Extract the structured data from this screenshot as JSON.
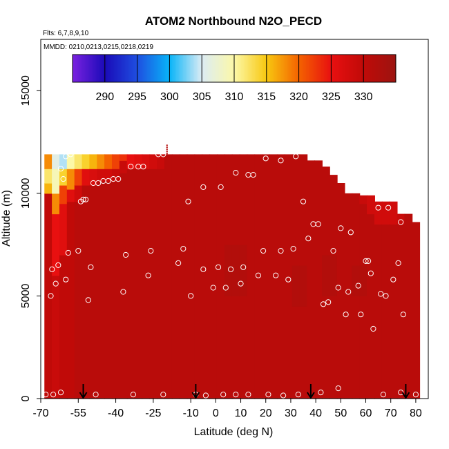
{
  "chart_data": {
    "type": "heatmap",
    "title": "ATOM2 Northbound N2O_PECD",
    "flights_label": "Flts: 6,7,8,9,10",
    "dates_label": "MMDD: 0210,0213,0215,0218,0219",
    "xlabel": "Latitude (deg N)",
    "ylabel": "Altitude (m)",
    "xlim": [
      -70,
      85
    ],
    "ylim": [
      0,
      17500
    ],
    "x_ticks": [
      -70,
      -55,
      -40,
      -25,
      -10,
      0,
      10,
      20,
      30,
      40,
      50,
      60,
      70,
      80
    ],
    "y_ticks": [
      0,
      5000,
      10000,
      15000
    ],
    "colorbar": {
      "ticks": [
        290,
        295,
        300,
        305,
        310,
        315,
        320,
        325,
        330
      ],
      "range": [
        285,
        335
      ],
      "colors": [
        "#7a22e0",
        "#1a0ab8",
        "#1e4ee0",
        "#08b4f8",
        "#dcecf4",
        "#fcf8a8",
        "#f8c810",
        "#f46200",
        "#e81010",
        "#c00a08",
        "#9c1410"
      ]
    },
    "profile_columns": [
      {
        "lat": -67,
        "top": 11900,
        "layers": [
          [
            0,
            10000,
            330
          ],
          [
            10000,
            10500,
            316
          ],
          [
            10500,
            11200,
            312
          ],
          [
            11200,
            11900,
            318
          ]
        ]
      },
      {
        "lat": -64,
        "top": 11900,
        "layers": [
          [
            0,
            6000,
            329
          ],
          [
            6000,
            9000,
            325
          ],
          [
            9000,
            10000,
            318
          ],
          [
            10000,
            11200,
            309
          ],
          [
            11200,
            11900,
            306
          ]
        ]
      },
      {
        "lat": -61,
        "top": 11900,
        "layers": [
          [
            0,
            7000,
            330
          ],
          [
            7000,
            9500,
            326
          ],
          [
            9500,
            10400,
            322
          ],
          [
            10400,
            11200,
            314
          ],
          [
            11200,
            11900,
            304
          ]
        ]
      },
      {
        "lat": -58,
        "top": 11900,
        "layers": [
          [
            0,
            9600,
            330
          ],
          [
            9600,
            10200,
            326
          ],
          [
            10200,
            11200,
            318
          ],
          [
            11200,
            11900,
            310
          ]
        ]
      },
      {
        "lat": -55,
        "top": 11900,
        "layers": [
          [
            0,
            9600,
            331
          ],
          [
            9600,
            10400,
            328
          ],
          [
            10400,
            11200,
            322
          ],
          [
            11200,
            11900,
            312
          ]
        ]
      },
      {
        "lat": -52,
        "top": 11900,
        "layers": [
          [
            0,
            10400,
            331
          ],
          [
            10400,
            11200,
            326
          ],
          [
            11200,
            11900,
            314
          ]
        ]
      },
      {
        "lat": -49,
        "top": 11900,
        "layers": [
          [
            0,
            10400,
            331
          ],
          [
            10400,
            11200,
            327
          ],
          [
            11200,
            11900,
            316
          ]
        ]
      },
      {
        "lat": -46,
        "top": 11900,
        "layers": [
          [
            0,
            10600,
            331
          ],
          [
            10600,
            11200,
            328
          ],
          [
            11200,
            11900,
            318
          ]
        ]
      },
      {
        "lat": -43,
        "top": 11900,
        "layers": [
          [
            0,
            10600,
            331
          ],
          [
            10600,
            11200,
            328
          ],
          [
            11200,
            11900,
            320
          ]
        ]
      },
      {
        "lat": -40,
        "top": 11900,
        "layers": [
          [
            0,
            10600,
            331
          ],
          [
            10600,
            11200,
            329
          ],
          [
            11200,
            11900,
            322
          ]
        ]
      },
      {
        "lat": -37,
        "top": 11900,
        "layers": [
          [
            0,
            11000,
            331
          ],
          [
            11000,
            11600,
            329
          ],
          [
            11600,
            11900,
            323
          ]
        ]
      },
      {
        "lat": -34,
        "top": 11900,
        "layers": [
          [
            0,
            11200,
            331
          ],
          [
            11200,
            11900,
            325
          ]
        ]
      },
      {
        "lat": -31,
        "top": 11900,
        "layers": [
          [
            0,
            11200,
            331
          ],
          [
            11200,
            11900,
            326
          ]
        ]
      },
      {
        "lat": -28,
        "top": 11900,
        "layers": [
          [
            0,
            11200,
            331
          ],
          [
            11200,
            11900,
            327
          ]
        ]
      },
      {
        "lat": -25,
        "top": 11900,
        "layers": [
          [
            0,
            11200,
            331
          ],
          [
            11200,
            11900,
            328
          ]
        ]
      },
      {
        "lat": -22,
        "top": 11900,
        "layers": [
          [
            0,
            11200,
            331
          ],
          [
            11200,
            11900,
            329
          ]
        ]
      },
      {
        "lat": -19,
        "top": 11900,
        "layers": [
          [
            0,
            11900,
            331
          ]
        ]
      },
      {
        "lat": -16,
        "top": 11900,
        "layers": [
          [
            0,
            11900,
            331
          ]
        ]
      },
      {
        "lat": -13,
        "top": 11900,
        "layers": [
          [
            0,
            11900,
            331
          ]
        ]
      },
      {
        "lat": -10,
        "top": 11900,
        "layers": [
          [
            0,
            11900,
            331
          ]
        ]
      },
      {
        "lat": -7,
        "top": 11900,
        "layers": [
          [
            0,
            11900,
            331
          ]
        ]
      },
      {
        "lat": -4,
        "top": 11900,
        "layers": [
          [
            0,
            11900,
            331
          ]
        ]
      },
      {
        "lat": -1,
        "top": 11900,
        "layers": [
          [
            0,
            11900,
            331
          ]
        ]
      },
      {
        "lat": 2,
        "top": 11900,
        "layers": [
          [
            0,
            11900,
            331
          ]
        ]
      },
      {
        "lat": 5,
        "top": 11900,
        "layers": [
          [
            0,
            5000,
            331
          ],
          [
            5000,
            7500,
            332
          ],
          [
            7500,
            11900,
            331
          ]
        ]
      },
      {
        "lat": 8,
        "top": 11900,
        "layers": [
          [
            0,
            5000,
            331
          ],
          [
            5000,
            7500,
            332
          ],
          [
            7500,
            11900,
            331
          ]
        ]
      },
      {
        "lat": 11,
        "top": 11900,
        "layers": [
          [
            0,
            5000,
            331
          ],
          [
            5000,
            7500,
            332
          ],
          [
            7500,
            11900,
            331
          ]
        ]
      },
      {
        "lat": 14,
        "top": 11900,
        "layers": [
          [
            0,
            11900,
            331
          ]
        ]
      },
      {
        "lat": 17,
        "top": 11900,
        "layers": [
          [
            0,
            11900,
            331
          ]
        ]
      },
      {
        "lat": 20,
        "top": 11900,
        "layers": [
          [
            0,
            11900,
            331
          ]
        ]
      },
      {
        "lat": 23,
        "top": 11900,
        "layers": [
          [
            0,
            11900,
            331
          ]
        ]
      },
      {
        "lat": 26,
        "top": 11900,
        "layers": [
          [
            0,
            11900,
            331
          ]
        ]
      },
      {
        "lat": 29,
        "top": 11900,
        "layers": [
          [
            0,
            11900,
            331
          ]
        ]
      },
      {
        "lat": 32,
        "top": 11900,
        "layers": [
          [
            0,
            4500,
            331
          ],
          [
            4500,
            6500,
            332
          ],
          [
            6500,
            11900,
            331
          ]
        ]
      },
      {
        "lat": 35,
        "top": 11900,
        "layers": [
          [
            0,
            4500,
            331
          ],
          [
            4500,
            6500,
            332
          ],
          [
            6500,
            11900,
            331
          ]
        ]
      },
      {
        "lat": 38,
        "top": 11600,
        "layers": [
          [
            0,
            11600,
            331
          ]
        ]
      },
      {
        "lat": 41,
        "top": 11600,
        "layers": [
          [
            0,
            11600,
            331
          ]
        ]
      },
      {
        "lat": 44,
        "top": 11300,
        "layers": [
          [
            0,
            5000,
            331
          ],
          [
            5000,
            7000,
            332
          ],
          [
            7000,
            11300,
            331
          ]
        ]
      },
      {
        "lat": 47,
        "top": 10900,
        "layers": [
          [
            0,
            5000,
            331
          ],
          [
            5000,
            7000,
            332
          ],
          [
            7000,
            10900,
            331
          ]
        ]
      },
      {
        "lat": 50,
        "top": 10500,
        "layers": [
          [
            0,
            10500,
            331
          ]
        ]
      },
      {
        "lat": 53,
        "top": 10000,
        "layers": [
          [
            0,
            10000,
            331
          ]
        ]
      },
      {
        "lat": 56,
        "top": 10000,
        "layers": [
          [
            0,
            5000,
            331
          ],
          [
            5000,
            6500,
            332
          ],
          [
            6500,
            10000,
            331
          ]
        ]
      },
      {
        "lat": 59,
        "top": 9900,
        "layers": [
          [
            0,
            5000,
            331
          ],
          [
            5000,
            6500,
            332
          ],
          [
            6500,
            9500,
            331
          ],
          [
            9500,
            9900,
            329
          ]
        ]
      },
      {
        "lat": 62,
        "top": 9900,
        "layers": [
          [
            0,
            9000,
            331
          ],
          [
            9000,
            9900,
            328
          ]
        ]
      },
      {
        "lat": 65,
        "top": 9600,
        "layers": [
          [
            0,
            8500,
            331
          ],
          [
            8500,
            9600,
            328
          ]
        ]
      },
      {
        "lat": 68,
        "top": 9600,
        "layers": [
          [
            0,
            8500,
            331
          ],
          [
            8500,
            9600,
            328
          ]
        ]
      },
      {
        "lat": 71,
        "top": 9600,
        "layers": [
          [
            0,
            8500,
            331
          ],
          [
            8500,
            9600,
            328
          ]
        ]
      },
      {
        "lat": 74,
        "top": 9000,
        "layers": [
          [
            0,
            8500,
            331
          ],
          [
            8500,
            9000,
            329
          ]
        ]
      },
      {
        "lat": 77,
        "top": 9000,
        "layers": [
          [
            0,
            9000,
            331
          ]
        ]
      },
      {
        "lat": 80,
        "top": 8600,
        "layers": [
          [
            0,
            8600,
            331
          ]
        ]
      }
    ],
    "observations": [
      [
        -67,
        12300
      ],
      [
        -66,
        5000
      ],
      [
        -65.5,
        6300
      ],
      [
        -64,
        5600
      ],
      [
        -63,
        6500
      ],
      [
        -62,
        11200
      ],
      [
        -61,
        10700
      ],
      [
        -60,
        5800
      ],
      [
        -59,
        7100
      ],
      [
        -60,
        11800
      ],
      [
        -58,
        11900
      ],
      [
        -55,
        7200
      ],
      [
        -54,
        9600
      ],
      [
        -53,
        9700
      ],
      [
        -52,
        9700
      ],
      [
        -51,
        4800
      ],
      [
        -50,
        6400
      ],
      [
        -49,
        10500
      ],
      [
        -47,
        10500
      ],
      [
        -45,
        10600
      ],
      [
        -43,
        10600
      ],
      [
        -41,
        10700
      ],
      [
        -39,
        10700
      ],
      [
        -37,
        5200
      ],
      [
        -36,
        7000
      ],
      [
        -34,
        11300
      ],
      [
        -31,
        11300
      ],
      [
        -29,
        11300
      ],
      [
        -27,
        6000
      ],
      [
        -26,
        7200
      ],
      [
        -23,
        11900
      ],
      [
        -21,
        11900
      ],
      [
        -15,
        6600
      ],
      [
        -13,
        7300
      ],
      [
        -11,
        9600
      ],
      [
        -10,
        5000
      ],
      [
        -5,
        6300
      ],
      [
        -5,
        10300
      ],
      [
        -1,
        5400
      ],
      [
        1,
        6400
      ],
      [
        2,
        10300
      ],
      [
        4,
        5400
      ],
      [
        6,
        6300
      ],
      [
        8,
        11000
      ],
      [
        10,
        5600
      ],
      [
        11,
        6400
      ],
      [
        13,
        10900
      ],
      [
        15,
        10900
      ],
      [
        17,
        6000
      ],
      [
        19,
        7200
      ],
      [
        20,
        11700
      ],
      [
        24,
        6000
      ],
      [
        26,
        7200
      ],
      [
        26,
        11600
      ],
      [
        29,
        5800
      ],
      [
        31,
        7300
      ],
      [
        32,
        11800
      ],
      [
        35,
        9600
      ],
      [
        37,
        7800
      ],
      [
        39,
        8500
      ],
      [
        41,
        8500
      ],
      [
        43,
        4600
      ],
      [
        45,
        4700
      ],
      [
        47,
        7200
      ],
      [
        49,
        5400
      ],
      [
        50,
        8300
      ],
      [
        52,
        4100
      ],
      [
        53,
        5200
      ],
      [
        54,
        8100
      ],
      [
        57,
        5500
      ],
      [
        58,
        4100
      ],
      [
        60,
        6700
      ],
      [
        61,
        6700
      ],
      [
        62,
        6100
      ],
      [
        63,
        3400
      ],
      [
        65,
        9300
      ],
      [
        66,
        5100
      ],
      [
        68,
        5000
      ],
      [
        69,
        9300
      ],
      [
        71,
        5800
      ],
      [
        73,
        6600
      ],
      [
        74,
        8600
      ],
      [
        75,
        4100
      ],
      [
        -68,
        200
      ],
      [
        -65,
        200
      ],
      [
        -62,
        300
      ],
      [
        -48,
        200
      ],
      [
        -33,
        200
      ],
      [
        -21,
        200
      ],
      [
        -8,
        200
      ],
      [
        -4,
        150
      ],
      [
        3,
        200
      ],
      [
        8,
        200
      ],
      [
        13,
        200
      ],
      [
        21,
        200
      ],
      [
        27,
        150
      ],
      [
        33,
        200
      ],
      [
        42,
        300
      ],
      [
        49,
        500
      ],
      [
        67,
        200
      ],
      [
        74,
        300
      ],
      [
        80,
        200
      ]
    ],
    "arrows_latitude": [
      -53,
      -8,
      38,
      76
    ]
  }
}
